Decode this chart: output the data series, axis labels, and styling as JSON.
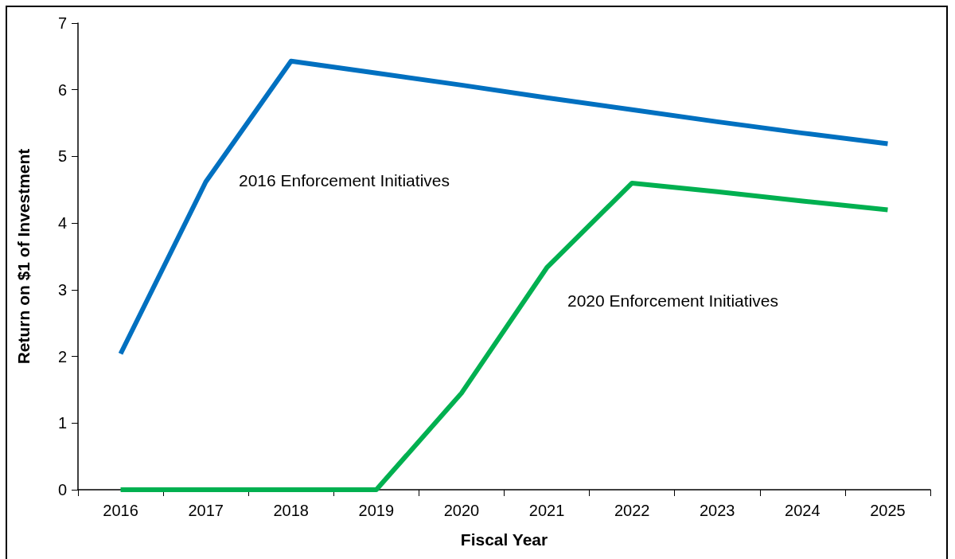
{
  "chart_data": {
    "type": "line",
    "xlabel": "Fiscal Year",
    "ylabel": "Return on $1 of Investment",
    "categories": [
      "2016",
      "2017",
      "2018",
      "2019",
      "2020",
      "2021",
      "2022",
      "2023",
      "2024",
      "2025"
    ],
    "series": [
      {
        "color": "#0070c0",
        "values": [
          2.04,
          4.62,
          6.43,
          6.25,
          6.07,
          5.88,
          5.7,
          5.52,
          5.35,
          5.19
        ]
      },
      {
        "color": "#00b050",
        "values": [
          0,
          0,
          0,
          0,
          1.45,
          3.33,
          4.6,
          4.47,
          4.33,
          4.2
        ]
      }
    ],
    "annotations": [
      "2016 Enforcement Initiatives",
      "2020 Enforcement Initiatives"
    ],
    "ylim": [
      0,
      7
    ],
    "yticks": [
      0,
      1,
      2,
      3,
      4,
      5,
      6,
      7
    ],
    "grid": false,
    "marker": "none",
    "line_style": "solid"
  }
}
